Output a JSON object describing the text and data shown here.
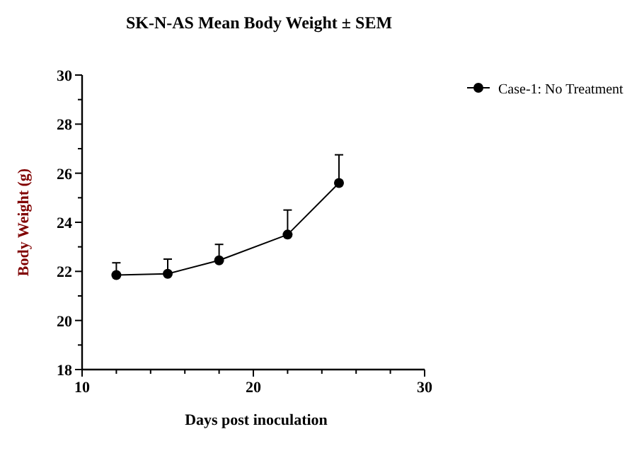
{
  "chart_data": {
    "type": "line",
    "title": "SK-N-AS Mean Body Weight ± SEM",
    "xlabel": "Days post inoculation",
    "ylabel": "Body Weight (g)",
    "x": [
      12,
      15,
      18,
      22,
      25
    ],
    "series": [
      {
        "name": "Case-1: No Treatment",
        "color": "#000000",
        "values": [
          21.85,
          21.9,
          22.45,
          23.5,
          25.6
        ],
        "errors": [
          [
            21.85,
            22.35
          ],
          [
            21.9,
            22.5
          ],
          [
            22.45,
            23.1
          ],
          [
            23.5,
            24.5
          ],
          [
            25.6,
            26.75
          ]
        ]
      }
    ],
    "xlim": [
      10,
      30
    ],
    "xticks": [
      10,
      {
        "value": 12,
        "label": null
      },
      {
        "value": 14,
        "label": null
      },
      {
        "value": 16,
        "label": null
      },
      {
        "value": 18,
        "label": null
      },
      20,
      {
        "value": 22,
        "label": null
      },
      {
        "value": 24,
        "label": null
      },
      {
        "value": 26,
        "label": null
      },
      {
        "value": 28,
        "label": null
      },
      30
    ],
    "ylim": [
      18,
      30
    ],
    "yticks": [
      18,
      {
        "value": 19,
        "label": null
      },
      20,
      {
        "value": 21,
        "label": null
      },
      22,
      {
        "value": 23,
        "label": null
      },
      24,
      {
        "value": 25,
        "label": null
      },
      26,
      {
        "value": 27,
        "label": null
      },
      28,
      {
        "value": 29,
        "label": null
      },
      30
    ],
    "legend": "top right",
    "marker": "circle",
    "line_style": "solid",
    "grid": false
  }
}
